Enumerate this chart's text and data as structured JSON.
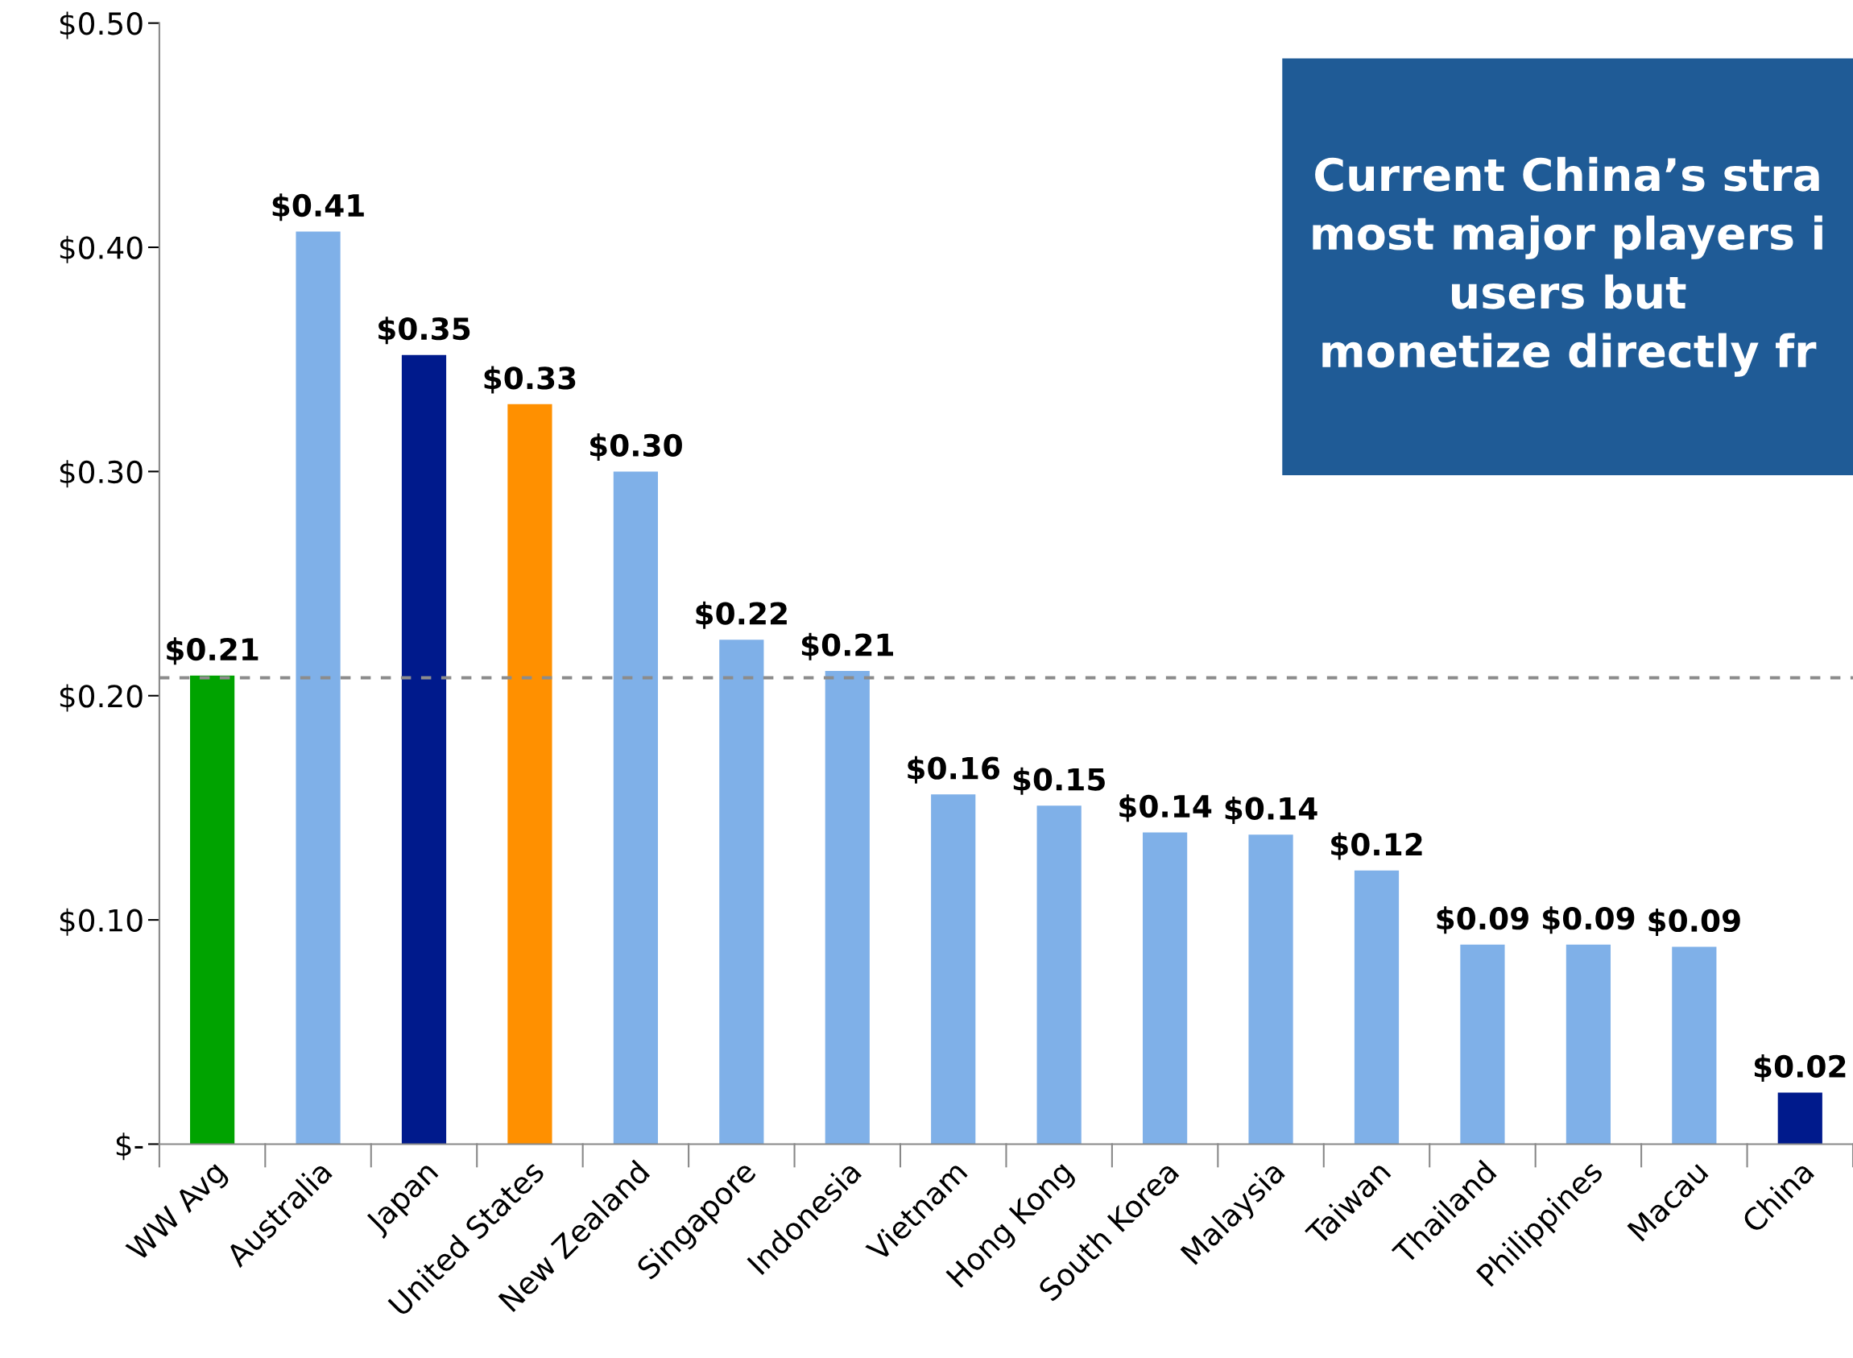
{
  "chart_data": {
    "type": "bar",
    "categories": [
      "WW Avg",
      "Australia",
      "Japan",
      "United States",
      "New Zealand",
      "Singapore",
      "Indonesia",
      "Vietnam",
      "Hong Kong",
      "South Korea",
      "Malaysia",
      "Taiwan",
      "Thailand",
      "Philippines",
      "Macau",
      "China"
    ],
    "values": [
      0.209,
      0.407,
      0.352,
      0.33,
      0.3,
      0.225,
      0.211,
      0.156,
      0.151,
      0.139,
      0.138,
      0.122,
      0.089,
      0.089,
      0.088,
      0.023
    ],
    "value_labels": [
      "$0.21",
      "$0.41",
      "$0.35",
      "$0.33",
      "$0.30",
      "$0.22",
      "$0.21",
      "$0.16",
      "$0.15",
      "$0.14",
      "$0.14",
      "$0.12",
      "$0.09",
      "$0.09",
      "$0.09",
      "$0.02"
    ],
    "colors": [
      "#00a300",
      "#7fb0e8",
      "#001a8c",
      "#ff9000",
      "#7fb0e8",
      "#7fb0e8",
      "#7fb0e8",
      "#7fb0e8",
      "#7fb0e8",
      "#7fb0e8",
      "#7fb0e8",
      "#7fb0e8",
      "#7fb0e8",
      "#7fb0e8",
      "#7fb0e8",
      "#001a8c"
    ],
    "ylim": [
      0,
      0.5
    ],
    "yticks": [
      {
        "value": 0,
        "label": "$-"
      },
      {
        "value": 0.1,
        "label": "$0.10"
      },
      {
        "value": 0.2,
        "label": "$0.20"
      },
      {
        "value": 0.3,
        "label": "$0.30"
      },
      {
        "value": 0.4,
        "label": "$0.40"
      },
      {
        "value": 0.5,
        "label": "$0.50"
      }
    ],
    "ref_lines": [
      {
        "axis": "y",
        "value": 0.208,
        "color": "#8c8c8c",
        "line_style": "dotted"
      }
    ],
    "annotations": [
      "Current China’s stra\nmost major players i\nusers but\nmonetize directly fr"
    ],
    "grid": false,
    "legend": false
  }
}
